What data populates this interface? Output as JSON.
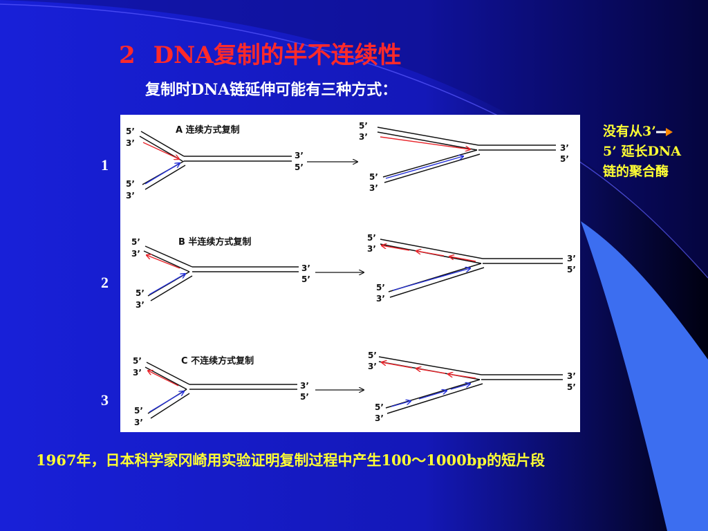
{
  "slide": {
    "title_num": "2",
    "title_text": "DNA复制的半不连续性",
    "subtitle": "复制时DNA链延伸可能有三种方式：",
    "note_line1": "没有从3’",
    "note_line2": "5’ 延长DNA",
    "note_line3": "链的聚合酶",
    "row_numbers": [
      "1",
      "2",
      "3"
    ],
    "bottom_text": "1967年，日本科学家冈崎用实验证明复制过程中产生100～1000bp的短片段"
  },
  "diagram": {
    "headers": {
      "A": "A  连续方式复制",
      "B": "B 半连续方式复制",
      "C": "C  不连续方式复制"
    },
    "end_label_5": "5’",
    "end_label_3": "3’"
  },
  "colors": {
    "background": "#1a1fd8",
    "title": "#ff2a2a",
    "highlight_text": "#ffff33",
    "red_strand": "#e8242a",
    "blue_strand": "#2430d8"
  },
  "icons": {
    "note_arrow": "right-arrow-icon"
  }
}
